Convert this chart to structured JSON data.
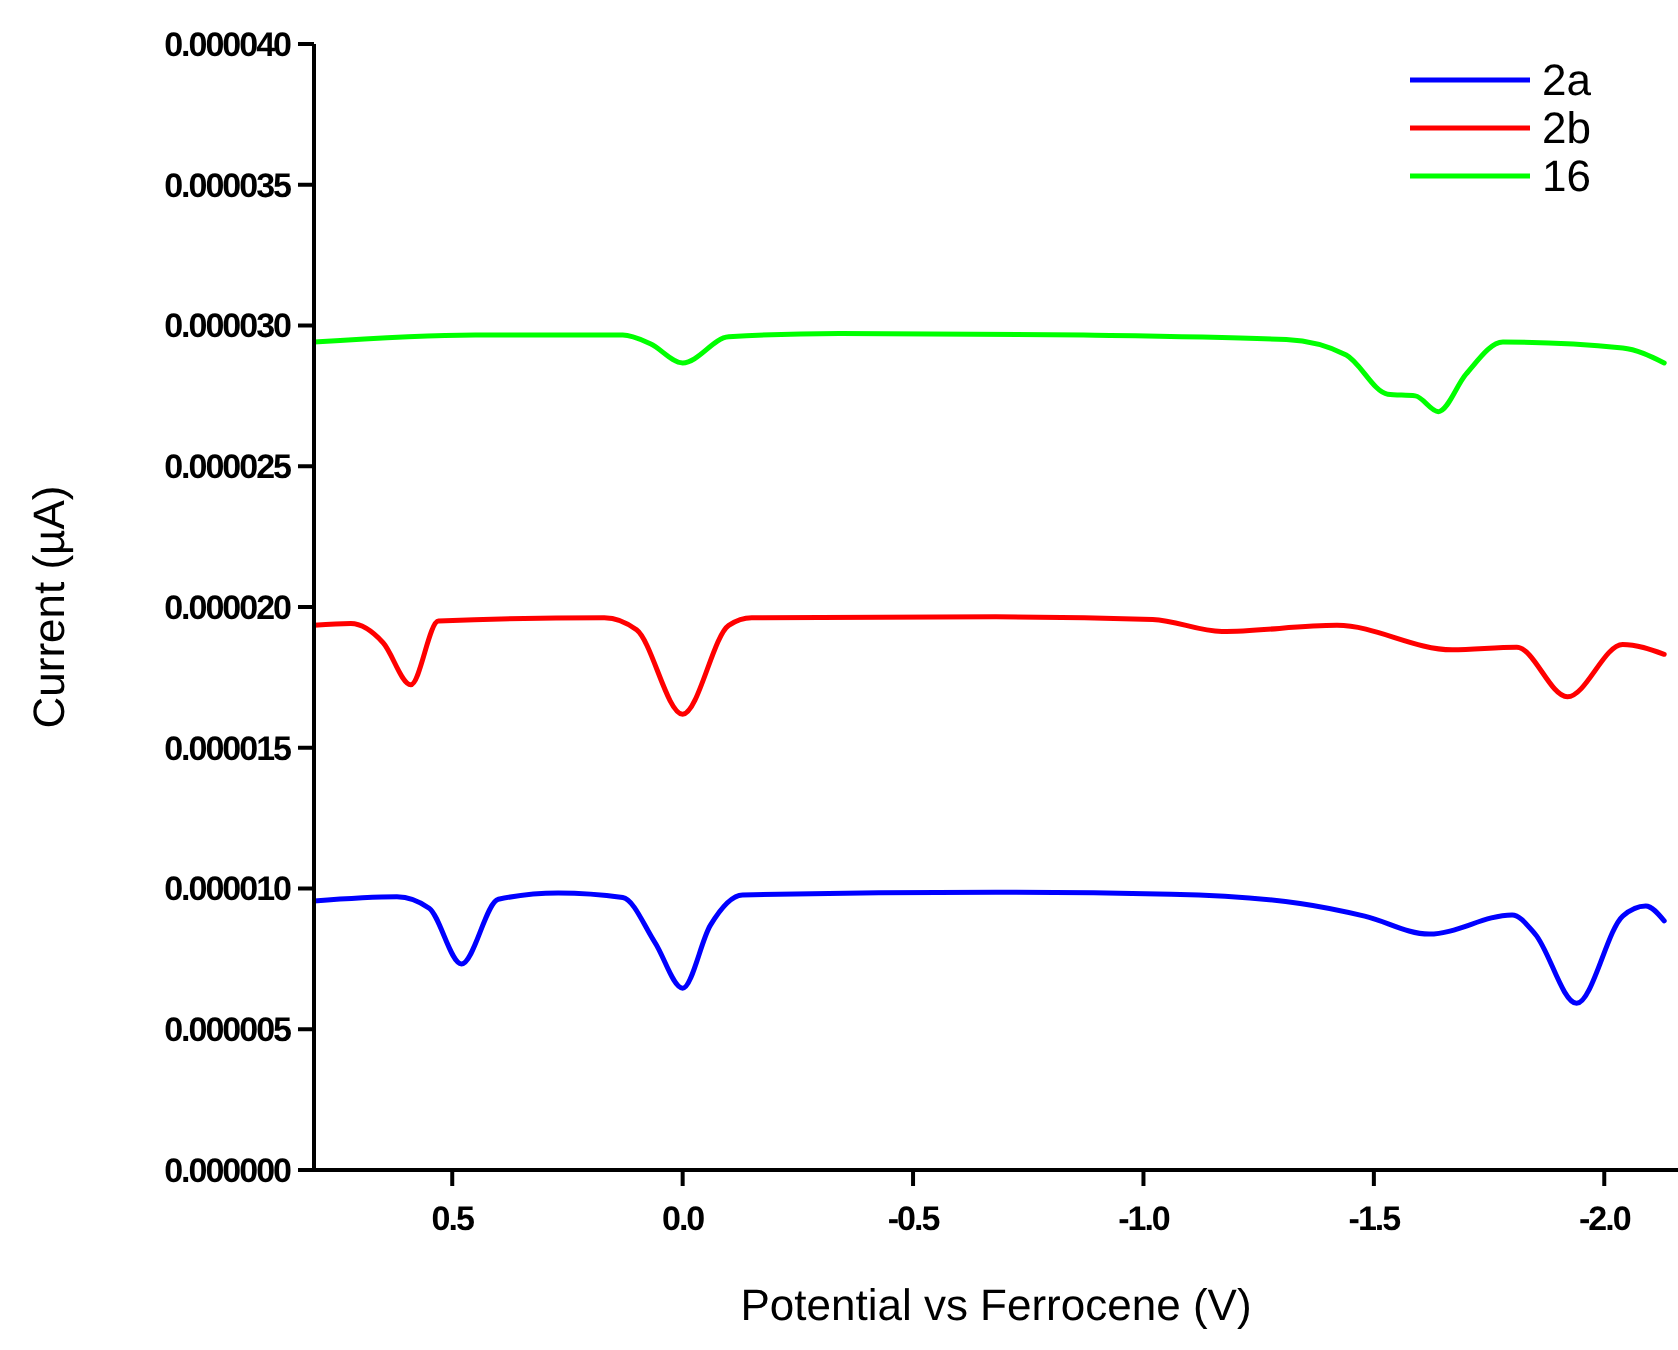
{
  "chart_data": {
    "type": "line",
    "xlabel": "Potential vs Ferrocene (V)",
    "ylabel": "Current (µA)",
    "xlim": [
      0.8,
      -2.16
    ],
    "ylim": [
      0,
      4e-05
    ],
    "xticks": [
      {
        "value": 0.5,
        "label": "0.5"
      },
      {
        "value": 0,
        "label": "0.0"
      },
      {
        "value": -0.5,
        "label": "-0.5"
      },
      {
        "value": -1,
        "label": "-1.0"
      },
      {
        "value": -1.5,
        "label": "-1.5"
      },
      {
        "value": -2,
        "label": "-2.0"
      }
    ],
    "yticks": [
      {
        "value": 0,
        "label": "0.000000"
      },
      {
        "value": 5e-06,
        "label": "0.000005"
      },
      {
        "value": 1e-05,
        "label": "0.000010"
      },
      {
        "value": 1.5e-05,
        "label": "0.000015"
      },
      {
        "value": 2e-05,
        "label": "0.000020"
      },
      {
        "value": 2.5e-05,
        "label": "0.000025"
      },
      {
        "value": 3e-05,
        "label": "0.000030"
      },
      {
        "value": 3.5e-05,
        "label": "0.000035"
      },
      {
        "value": 4e-05,
        "label": "0.000040"
      }
    ],
    "legend": "top right",
    "grid": false,
    "marker": "none",
    "line_style": "solid",
    "series": [
      {
        "name": "2a",
        "color": "#0000ff",
        "x": [
          0.8,
          0.62,
          0.55,
          0.48,
          0.4,
          0.27,
          0.13,
          0.06,
          0.0,
          -0.06,
          -0.13,
          -0.68,
          -1.06,
          -1.34,
          -1.48,
          -1.62,
          -1.8,
          -1.85,
          -1.94,
          -2.04,
          -2.09,
          -2.13
        ],
        "values": [
          9.56e-06,
          9.71e-06,
          9.3e-06,
          7.32e-06,
          9.62e-06,
          9.84e-06,
          9.68e-06,
          8.08e-06,
          6.46e-06,
          8.69e-06,
          9.77e-06,
          9.87e-06,
          9.8e-06,
          9.47e-06,
          9.02e-06,
          8.38e-06,
          9.06e-06,
          8.38e-06,
          5.92e-06,
          9.02e-06,
          9.38e-06,
          8.85e-06
        ]
      },
      {
        "name": "2b",
        "color": "#ff0000",
        "x": [
          0.8,
          0.72,
          0.65,
          0.59,
          0.53,
          0.17,
          0.1,
          0.0,
          -0.1,
          -0.15,
          -0.68,
          -1.02,
          -1.17,
          -1.42,
          -1.67,
          -1.81,
          -1.92,
          -2.04,
          -2.13
        ],
        "values": [
          1.935e-05,
          1.941e-05,
          1.873e-05,
          1.724e-05,
          1.95e-05,
          1.962e-05,
          1.919e-05,
          1.619e-05,
          1.935e-05,
          1.962e-05,
          1.965e-05,
          1.956e-05,
          1.913e-05,
          1.935e-05,
          1.848e-05,
          1.857e-05,
          1.681e-05,
          1.867e-05,
          1.832e-05
        ]
      },
      {
        "name": "16",
        "color": "#00ff00",
        "x": [
          0.8,
          0.45,
          0.13,
          0.07,
          0.0,
          -0.1,
          -0.34,
          -0.87,
          -1.31,
          -1.44,
          -1.53,
          -1.59,
          -1.64,
          -1.7,
          -1.78,
          -2.04,
          -2.13
        ],
        "values": [
          2.941e-05,
          2.966e-05,
          2.966e-05,
          2.935e-05,
          2.867e-05,
          2.96e-05,
          2.972e-05,
          2.966e-05,
          2.95e-05,
          2.895e-05,
          2.756e-05,
          2.75e-05,
          2.694e-05,
          2.827e-05,
          2.941e-05,
          2.92e-05,
          2.867e-05
        ]
      }
    ]
  }
}
